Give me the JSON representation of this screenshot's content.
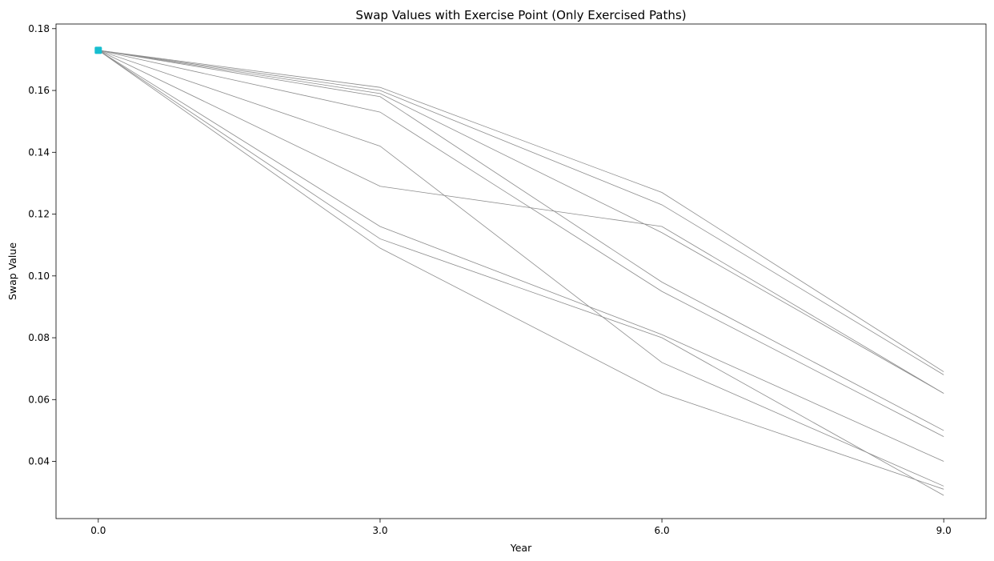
{
  "chart_data": {
    "type": "line",
    "title": "Swap Values with Exercise Point (Only Exercised Paths)",
    "xlabel": "Year",
    "ylabel": "Swap Value",
    "x": [
      0.0,
      3.0,
      6.0,
      9.0
    ],
    "xticks": [
      "0.0",
      "3.0",
      "6.0",
      "9.0"
    ],
    "xlim": [
      -0.45,
      9.45
    ],
    "ylim": [
      0.0215,
      0.1815
    ],
    "yticks": [
      "0.04",
      "0.06",
      "0.08",
      "0.10",
      "0.12",
      "0.14",
      "0.16",
      "0.18"
    ],
    "ytick_values": [
      0.04,
      0.06,
      0.08,
      0.1,
      0.12,
      0.14,
      0.16,
      0.18
    ],
    "grid": false,
    "line_color": "#8c8c8c",
    "marker_color": "#17becf",
    "exercise_point": {
      "x": 0.0,
      "y": 0.173
    },
    "series": [
      {
        "values": [
          0.173,
          0.161,
          0.127,
          0.069
        ]
      },
      {
        "values": [
          0.173,
          0.16,
          0.123,
          0.068
        ]
      },
      {
        "values": [
          0.173,
          0.159,
          0.114,
          0.062
        ]
      },
      {
        "values": [
          0.173,
          0.158,
          0.098,
          0.05
        ]
      },
      {
        "values": [
          0.173,
          0.153,
          0.095,
          0.048
        ]
      },
      {
        "values": [
          0.173,
          0.142,
          0.072,
          0.032
        ]
      },
      {
        "values": [
          0.173,
          0.129,
          0.116,
          0.062
        ]
      },
      {
        "values": [
          0.173,
          0.116,
          0.081,
          0.04
        ]
      },
      {
        "values": [
          0.173,
          0.112,
          0.08,
          0.029
        ]
      },
      {
        "values": [
          0.173,
          0.109,
          0.062,
          0.031
        ]
      }
    ]
  }
}
